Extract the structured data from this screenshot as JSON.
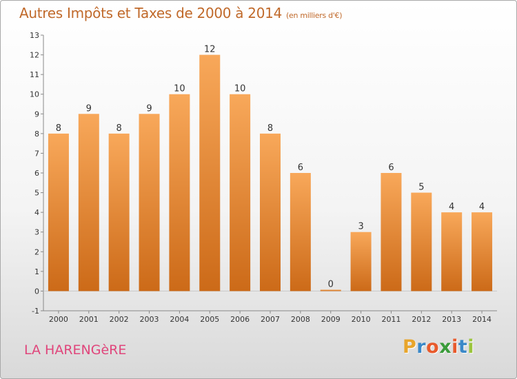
{
  "title": "Autres Impôts et Taxes de 2000 à 2014",
  "unit_label": "(en milliers d'€)",
  "commune": "LA HARENGèRE",
  "brand": {
    "letters": [
      "P",
      "r",
      "o",
      "x",
      "i",
      "t",
      "i"
    ],
    "colors": [
      "#e8a52b",
      "#3a88c8",
      "#e85a2c",
      "#3a9b3a",
      "#e85a2c",
      "#3a88c8",
      "#9bc53d"
    ]
  },
  "colors": {
    "title": "#c0692a",
    "bar_light": "#f8a85a",
    "bar_dark": "#cc6a18",
    "commune": "#e0457b"
  },
  "chart_data": {
    "type": "bar",
    "title": "Autres Impôts et Taxes de 2000 à 2014",
    "categories": [
      "2000",
      "2001",
      "2002",
      "2003",
      "2004",
      "2005",
      "2006",
      "2007",
      "2008",
      "2009",
      "2010",
      "2011",
      "2012",
      "2013",
      "2014"
    ],
    "values": [
      8,
      9,
      8,
      9,
      10,
      12,
      10,
      8,
      6,
      0,
      3,
      6,
      5,
      4,
      4
    ],
    "y_ticks": [
      "-1",
      "0",
      "1",
      "2",
      "3",
      "4",
      "5",
      "6",
      "7",
      "8",
      "9",
      "10",
      "11",
      "12",
      "13"
    ],
    "ylim": [
      -1,
      13
    ],
    "grid": false
  }
}
